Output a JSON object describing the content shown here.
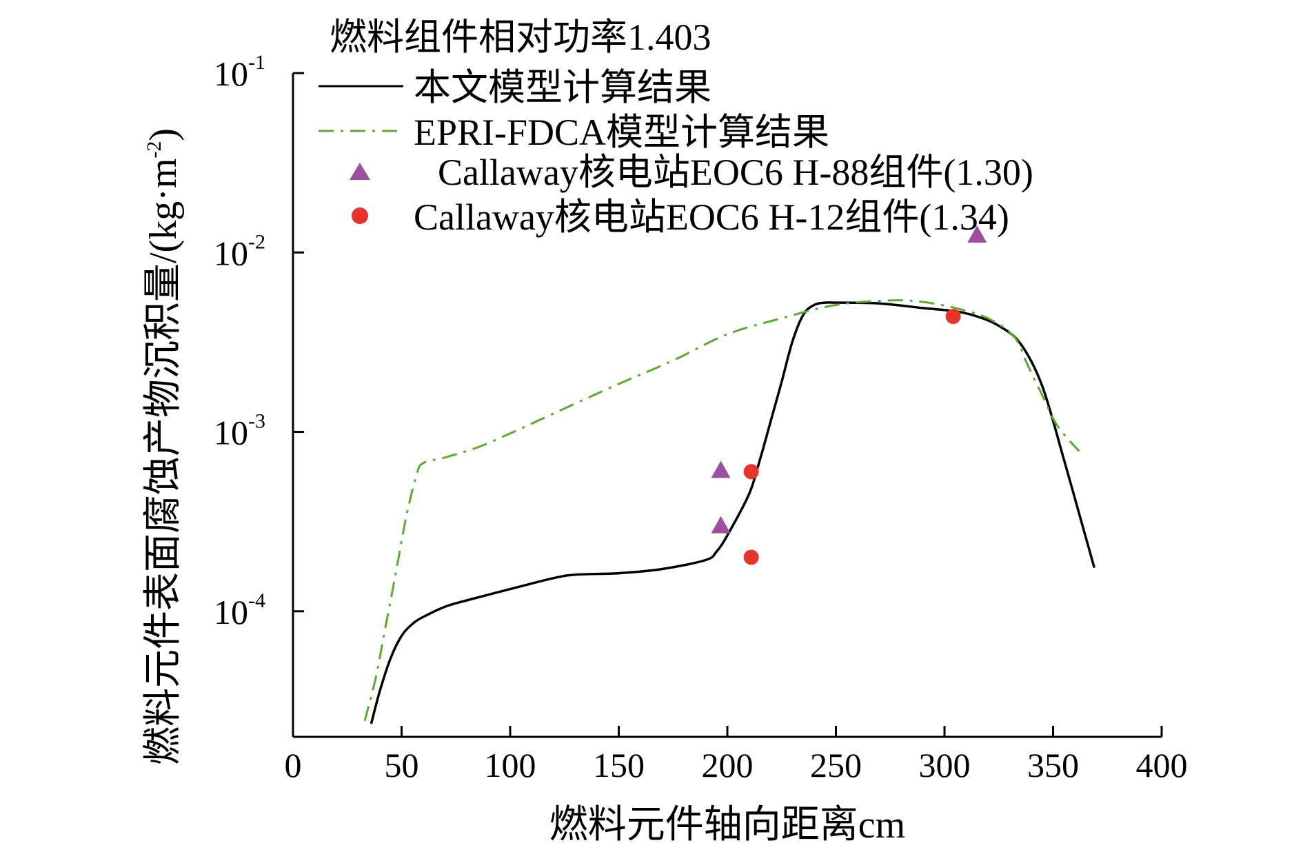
{
  "chart_data": {
    "type": "line",
    "title": "燃料组件相对功率1.403",
    "xlabel": "燃料元件轴向距离cm",
    "ylabel": "燃料元件表面腐蚀产物沉积量/(kg·m",
    "ylabel_exp": "-2",
    "ylabel_close": ")",
    "xlim": [
      0,
      400
    ],
    "ylim_log10": [
      -4.7,
      -1
    ],
    "y_scale": "log",
    "x_ticks": [
      0,
      50,
      100,
      150,
      200,
      250,
      300,
      350,
      400
    ],
    "x_tick_labels": [
      "0",
      "50",
      "100",
      "150",
      "200",
      "250",
      "300",
      "350",
      "400"
    ],
    "y_ticks": [
      {
        "value": 0.1,
        "base": "10",
        "exp": "-1"
      },
      {
        "value": 0.01,
        "base": "10",
        "exp": "-2"
      },
      {
        "value": 0.001,
        "base": "10",
        "exp": "-3"
      },
      {
        "value": 0.0001,
        "base": "10",
        "exp": "-4"
      }
    ],
    "legend_position": "top",
    "series": [
      {
        "name": "本文模型计算结果",
        "style": "solid",
        "color": "#000000",
        "x": [
          36,
          40,
          45,
          50,
          55,
          60,
          70,
          80,
          100,
          120,
          130,
          150,
          170,
          190,
          195,
          200,
          210,
          215,
          220,
          225,
          230,
          235,
          240,
          245,
          250,
          270,
          290,
          305,
          315,
          325,
          335,
          345,
          355,
          362,
          369
        ],
        "y": [
          2.36e-05,
          3.6e-05,
          5.5e-05,
          7.3e-05,
          8.5e-05,
          9.3e-05,
          0.000106,
          0.000115,
          0.000133,
          0.000153,
          0.00016,
          0.000163,
          0.000172,
          0.000193,
          0.000215,
          0.000265,
          0.00045,
          0.0007,
          0.00115,
          0.0019,
          0.0032,
          0.0045,
          0.0051,
          0.00525,
          0.00525,
          0.0052,
          0.0049,
          0.0047,
          0.0044,
          0.0039,
          0.0031,
          0.0018,
          0.0007,
          0.00035,
          0.000175
        ]
      },
      {
        "name": "EPRI-FDCA模型计算结果",
        "style": "dashdot",
        "color": "#5aab2e",
        "x": [
          33,
          38,
          42,
          47,
          52,
          57,
          60,
          70,
          85,
          100,
          125,
          150,
          175,
          200,
          225,
          250,
          275,
          290,
          305,
          320,
          332,
          338,
          345,
          352,
          362
        ],
        "y": [
          2.45e-05,
          4.2e-05,
          7.5e-05,
          0.000155,
          0.00033,
          0.00058,
          0.00067,
          0.00072,
          0.00082,
          0.00098,
          0.00135,
          0.00185,
          0.0025,
          0.0035,
          0.0043,
          0.0051,
          0.0054,
          0.0053,
          0.0049,
          0.0043,
          0.0034,
          0.0024,
          0.0016,
          0.00108,
          0.00078
        ]
      }
    ],
    "scatter_series": [
      {
        "name": "Callaway核电站EOC6 H-88组件(1.30)",
        "marker": "triangle",
        "color": "#9b4f9e",
        "x": [
          197,
          197,
          315
        ],
        "y": [
          0.00061,
          0.0003,
          0.0125
        ]
      },
      {
        "name": "Callaway核电站EOC6 H-12组件(1.34)",
        "marker": "circle",
        "color": "#e8332a",
        "x": [
          211,
          211,
          304
        ],
        "y": [
          0.0006,
          0.0002,
          0.0044
        ]
      }
    ]
  }
}
